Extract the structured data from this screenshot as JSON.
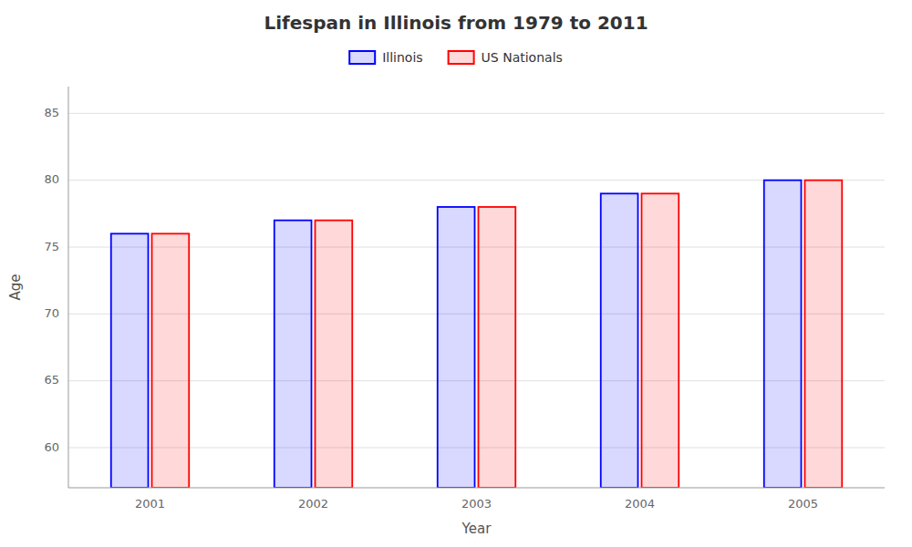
{
  "chart_data": {
    "type": "bar",
    "title": "Lifespan in Illinois from 1979 to 2011",
    "x_label": "Year",
    "y_label": "Age",
    "categories": [
      "2001",
      "2002",
      "2003",
      "2004",
      "2005"
    ],
    "series": [
      {
        "name": "Illinois",
        "color": "#0000ff",
        "values": [
          76,
          77,
          78,
          79,
          80
        ]
      },
      {
        "name": "US Nationals",
        "color": "#ff0000",
        "values": [
          76,
          77,
          78,
          79,
          80
        ]
      }
    ],
    "ylim": [
      57,
      87
    ],
    "yticks": [
      60,
      65,
      70,
      75,
      80,
      85
    ],
    "grid": true,
    "legend": "top"
  }
}
